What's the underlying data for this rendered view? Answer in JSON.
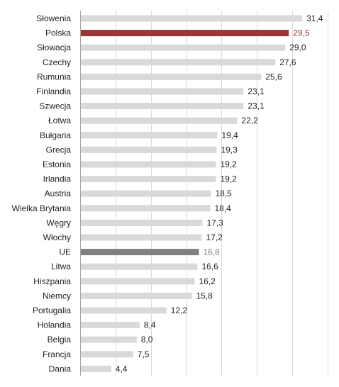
{
  "chart_data": {
    "type": "bar",
    "orientation": "horizontal",
    "title": "",
    "xlabel": "",
    "ylabel": "",
    "xlim": [
      0,
      35
    ],
    "grid": true,
    "legend": "none",
    "categories": [
      "Słowenia",
      "Polska",
      "Słowacja",
      "Czechy",
      "Rumunia",
      "Finlandia",
      "Szwecja",
      "Łotwa",
      "Bułgaria",
      "Grecja",
      "Estonia",
      "Irlandia",
      "Austria",
      "Wielka Brytania",
      "Węgry",
      "Włochy",
      "UE",
      "Litwa",
      "Hiszpania",
      "Niemcy",
      "Portugalia",
      "Holandia",
      "Belgia",
      "Francja",
      "Dania"
    ],
    "values": [
      31.4,
      29.5,
      29.0,
      27.6,
      25.6,
      23.1,
      23.1,
      22.2,
      19.4,
      19.3,
      19.2,
      19.2,
      18.5,
      18.4,
      17.3,
      17.2,
      16.8,
      16.6,
      16.2,
      15.8,
      12.2,
      8.4,
      8.0,
      7.5,
      4.4
    ],
    "value_labels": [
      "31,4",
      "29,5",
      "29,0",
      "27,6",
      "25,6",
      "23,1",
      "23,1",
      "22,2",
      "19,4",
      "19,3",
      "19,2",
      "19,2",
      "18,5",
      "18,4",
      "17,3",
      "17,2",
      "16,8",
      "16,6",
      "16,2",
      "15,8",
      "12,2",
      "8,4",
      "8,0",
      "7,5",
      "4,4"
    ],
    "colors": {
      "default_bar": "#d9d9d9",
      "default_label": "#1f1f1f",
      "highlight": {
        "Polska": {
          "bar": "#9c3535",
          "label": "#9c3535"
        },
        "UE": {
          "bar": "#808080",
          "label": "#7f7f7f"
        }
      },
      "grid": "#d9d9d9",
      "axis": "#a6a6a6"
    }
  }
}
